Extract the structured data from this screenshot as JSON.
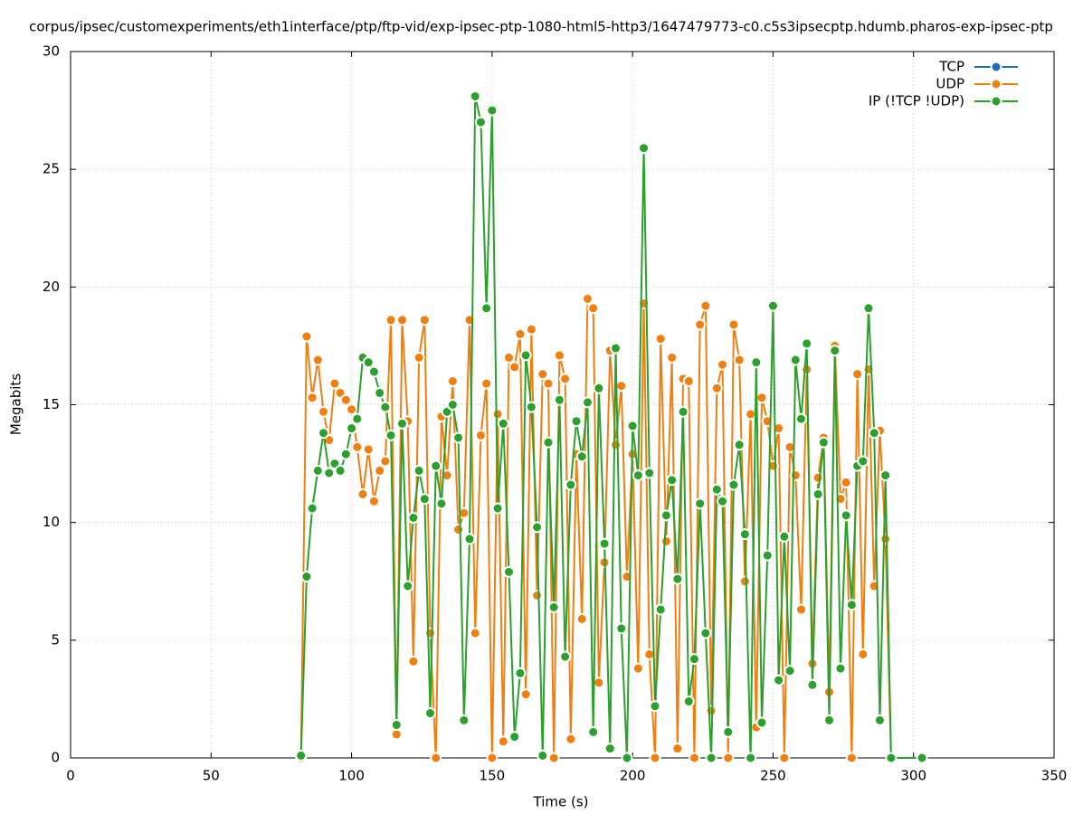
{
  "chart_data": {
    "type": "line",
    "title": "corpus/ipsec/customexperiments/eth1interface/ptp/ftp-vid/exp-ipsec-ptp-1080-html5-http3/1647479773-c0.c5s3ipsecptp.hdumb.pharos-exp-ipsec-ptp",
    "x_label": "Time (s)",
    "y_label": "Megabits",
    "xlim": [
      0,
      350
    ],
    "xticks": [
      0,
      50,
      100,
      150,
      200,
      250,
      300,
      350
    ],
    "ylim": [
      0,
      30
    ],
    "yticks": [
      0,
      5,
      10,
      15,
      20,
      25,
      30
    ],
    "grid": true,
    "legend": "top-right",
    "x": [
      82,
      84,
      86,
      88,
      90,
      92,
      94,
      96,
      98,
      100,
      102,
      104,
      106,
      108,
      110,
      112,
      114,
      116,
      118,
      120,
      122,
      124,
      126,
      128,
      130,
      132,
      134,
      136,
      138,
      140,
      142,
      144,
      146,
      148,
      150,
      152,
      154,
      156,
      158,
      160,
      162,
      164,
      166,
      168,
      170,
      172,
      174,
      176,
      178,
      180,
      182,
      184,
      186,
      188,
      190,
      192,
      194,
      196,
      198,
      200,
      202,
      204,
      206,
      208,
      210,
      212,
      214,
      216,
      218,
      220,
      222,
      224,
      226,
      228,
      230,
      232,
      234,
      236,
      238,
      240,
      242,
      244,
      246,
      248,
      250,
      252,
      254,
      256,
      258,
      260,
      262,
      264,
      266,
      268,
      270,
      272,
      274,
      276,
      278,
      280,
      282,
      284,
      286,
      288,
      290,
      292,
      303
    ],
    "series": [
      {
        "name": "TCP",
        "color": "#1f6fb5",
        "values": [
          null,
          null,
          null,
          null,
          null,
          null,
          null,
          null,
          null,
          null,
          null,
          null,
          null,
          null,
          null,
          null,
          null,
          null,
          null,
          null,
          null,
          null,
          null,
          null,
          null,
          null,
          null,
          null,
          null,
          null,
          null,
          null,
          null,
          null,
          null,
          null,
          null,
          null,
          null,
          null,
          null,
          null,
          null,
          null,
          null,
          null,
          null,
          null,
          null,
          null,
          null,
          null,
          null,
          null,
          null,
          null,
          null,
          null,
          null,
          null,
          null,
          null,
          null,
          null,
          null,
          null,
          null,
          null,
          null,
          null,
          null,
          null,
          null,
          null,
          null,
          null,
          null,
          null,
          null,
          null,
          null,
          null,
          null,
          null,
          null,
          null,
          null,
          null,
          null,
          null,
          null,
          null,
          null,
          null,
          null,
          null,
          null,
          null,
          null,
          null,
          null,
          null,
          null,
          null,
          null,
          null,
          null
        ]
      },
      {
        "name": "UDP",
        "color": "#f07f10",
        "values": [
          0,
          17.9,
          15.3,
          16.9,
          14.7,
          13.5,
          15.9,
          15.5,
          15.2,
          14.8,
          13.2,
          11.2,
          13.1,
          10.9,
          12.2,
          12.6,
          18.6,
          1.0,
          18.6,
          14.3,
          4.1,
          17.0,
          18.6,
          5.3,
          0,
          14.5,
          12.0,
          16.0,
          9.7,
          10.4,
          18.6,
          5.3,
          13.7,
          15.9,
          0,
          14.6,
          0.7,
          17.0,
          16.6,
          18.0,
          2.7,
          18.2,
          6.9,
          16.3,
          15.9,
          0,
          17.1,
          16.1,
          0.8,
          12.9,
          5.9,
          19.5,
          19.1,
          3.2,
          8.3,
          17.3,
          13.3,
          15.8,
          7.7,
          12.9,
          3.8,
          19.3,
          4.4,
          0,
          17.8,
          9.2,
          17.0,
          0.4,
          16.1,
          16.0,
          0,
          18.4,
          19.2,
          2.0,
          15.7,
          16.7,
          0,
          18.4,
          16.9,
          7.5,
          14.6,
          1.3,
          15.3,
          14.3,
          12.4,
          14.0,
          0,
          13.2,
          12.0,
          6.3,
          16.5,
          4.0,
          11.9,
          13.6,
          2.8,
          17.5,
          11.0,
          11.7,
          0,
          16.3,
          4.4,
          16.5,
          7.3,
          13.9,
          9.3,
          0,
          null
        ]
      },
      {
        "name": "IP (!TCP  !UDP)",
        "color": "#2ca02c",
        "values": [
          0.1,
          7.7,
          10.6,
          12.2,
          13.8,
          12.1,
          12.5,
          12.2,
          12.9,
          14.0,
          14.4,
          17.0,
          16.8,
          16.4,
          15.5,
          14.9,
          13.7,
          1.4,
          14.2,
          7.3,
          10.2,
          12.2,
          11.0,
          1.9,
          12.4,
          10.8,
          14.7,
          15.0,
          13.6,
          1.6,
          9.3,
          28.1,
          27.0,
          19.1,
          27.5,
          10.6,
          14.2,
          7.9,
          0.9,
          3.6,
          17.1,
          14.9,
          9.8,
          0.1,
          13.4,
          6.4,
          15.2,
          4.3,
          11.6,
          14.3,
          12.8,
          15.1,
          1.1,
          15.7,
          9.1,
          0.4,
          17.4,
          5.5,
          0,
          14.1,
          12.0,
          25.9,
          12.1,
          2.2,
          6.3,
          10.3,
          11.8,
          7.6,
          14.7,
          2.4,
          4.2,
          10.8,
          5.3,
          0,
          11.4,
          10.9,
          1.1,
          11.6,
          13.3,
          9.5,
          0,
          16.8,
          1.5,
          8.6,
          19.2,
          3.3,
          9.4,
          3.7,
          16.9,
          14.4,
          17.6,
          3.1,
          11.2,
          13.4,
          1.6,
          17.3,
          3.8,
          10.3,
          6.5,
          12.4,
          12.6,
          19.1,
          13.8,
          1.6,
          12.0,
          0,
          0
        ]
      }
    ]
  }
}
